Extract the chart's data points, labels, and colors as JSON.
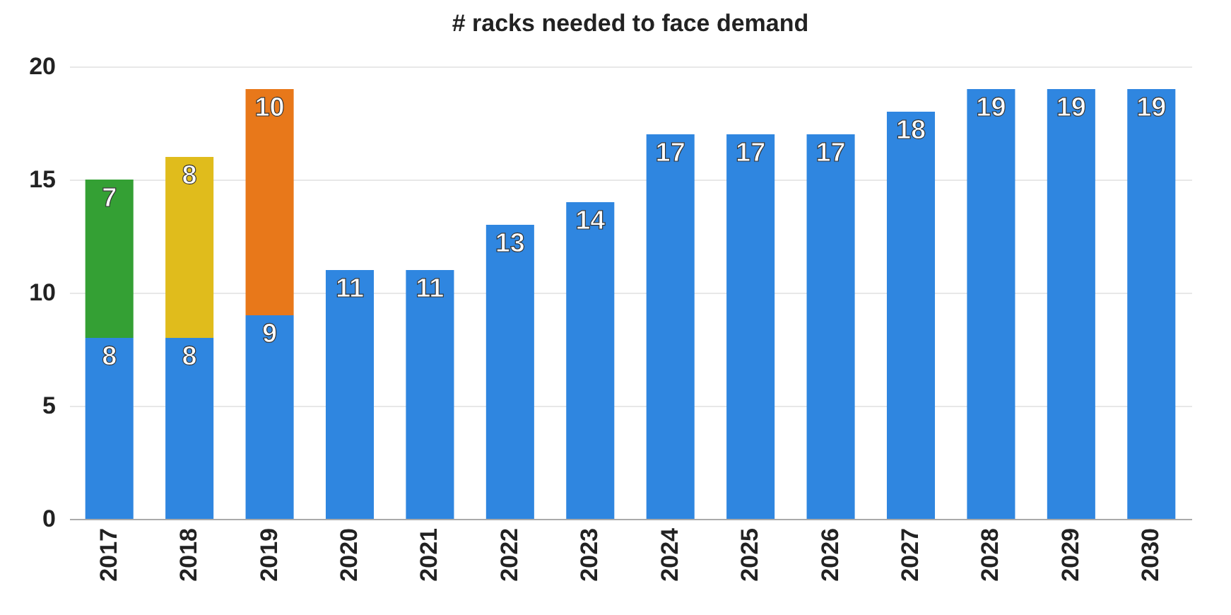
{
  "chart_data": {
    "type": "bar",
    "title": "# racks needed to face demand",
    "categories": [
      "2017",
      "2018",
      "2019",
      "2020",
      "2021",
      "2022",
      "2023",
      "2024",
      "2025",
      "2026",
      "2027",
      "2028",
      "2029",
      "2030"
    ],
    "stacked": true,
    "data_labels": true,
    "grid": "y",
    "ylim": [
      0,
      20
    ],
    "yticks": [
      0,
      5,
      10,
      15,
      20
    ],
    "series": [
      {
        "color": "#2f86e0",
        "values": [
          8,
          8,
          9,
          11,
          11,
          13,
          14,
          17,
          17,
          17,
          18,
          19,
          19,
          19
        ]
      },
      {
        "color": "#34a034",
        "values": [
          7,
          null,
          null,
          null,
          null,
          null,
          null,
          null,
          null,
          null,
          null,
          null,
          null,
          null
        ]
      },
      {
        "color": "#e0bc1c",
        "values": [
          null,
          8,
          null,
          null,
          null,
          null,
          null,
          null,
          null,
          null,
          null,
          null,
          null,
          null
        ]
      },
      {
        "color": "#e8781a",
        "values": [
          null,
          null,
          10,
          null,
          null,
          null,
          null,
          null,
          null,
          null,
          null,
          null,
          null,
          null
        ]
      }
    ]
  }
}
